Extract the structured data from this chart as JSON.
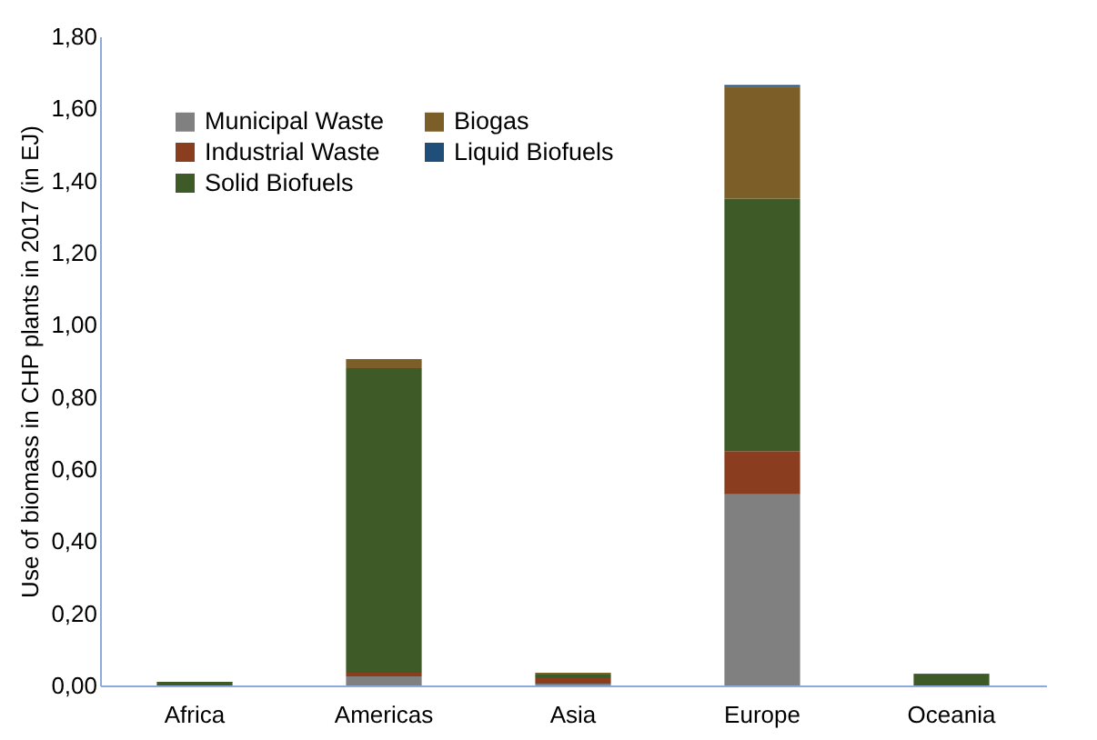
{
  "chart_data": {
    "type": "bar",
    "stacked": true,
    "ylabel": "Use of biomass in CHP plants in 2017 (in EJ)",
    "categories": [
      "Africa",
      "Americas",
      "Asia",
      "Europe",
      "Oceania"
    ],
    "series": [
      {
        "name": "Municipal Waste",
        "color": "#808080",
        "values": [
          0,
          0.025,
          0.005,
          0.53,
          0
        ]
      },
      {
        "name": "Industrial Waste",
        "color": "#8b3e1f",
        "values": [
          0,
          0.01,
          0.015,
          0.12,
          0
        ]
      },
      {
        "name": "Solid Biofuels",
        "color": "#3d5a27",
        "values": [
          0.01,
          0.845,
          0.01,
          0.7,
          0.03
        ]
      },
      {
        "name": "Biogas",
        "color": "#7b5e28",
        "values": [
          0,
          0.025,
          0.005,
          0.31,
          0.003
        ]
      },
      {
        "name": "Liquid Biofuels",
        "color": "#1f4e79",
        "values": [
          0,
          0,
          0,
          0.005,
          0
        ]
      }
    ],
    "ylim": [
      0,
      1.8
    ],
    "yticks": [
      {
        "value": 0,
        "label": "0,00"
      },
      {
        "value": 0.2,
        "label": "0,20"
      },
      {
        "value": 0.4,
        "label": "0,40"
      },
      {
        "value": 0.6,
        "label": "0,60"
      },
      {
        "value": 0.8,
        "label": "0,80"
      },
      {
        "value": 1,
        "label": "1,00"
      },
      {
        "value": 1.2,
        "label": "1,20"
      },
      {
        "value": 1.4,
        "label": "1,40"
      },
      {
        "value": 1.6,
        "label": "1,60"
      },
      {
        "value": 1.8,
        "label": "1,80"
      }
    ],
    "grid": false,
    "legend": "top left"
  }
}
